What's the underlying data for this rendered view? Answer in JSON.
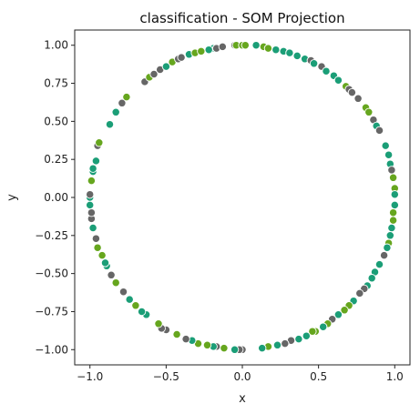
{
  "chart_data": {
    "type": "scatter",
    "title": "classification - SOM Projection",
    "xlabel": "x",
    "ylabel": "y",
    "xlim": [
      -1.1,
      1.1
    ],
    "ylim": [
      -1.1,
      1.1
    ],
    "xticks": [
      -1.0,
      -0.5,
      0.0,
      0.5,
      1.0
    ],
    "xtick_labels": [
      "−1.0",
      "−0.5",
      "0.0",
      "0.5",
      "1.0"
    ],
    "yticks": [
      -1.0,
      -0.75,
      -0.5,
      -0.25,
      0.0,
      0.25,
      0.5,
      0.75,
      1.0
    ],
    "ytick_labels": [
      "−1.00",
      "−0.75",
      "−0.50",
      "−0.25",
      "0.00",
      "0.25",
      "0.50",
      "0.75",
      "1.00"
    ],
    "grid": false,
    "colors": {
      "green": "#1b9e77",
      "lime": "#66a61e",
      "gray": "#666666",
      "edge": "#ffffff"
    },
    "points": [
      {
        "x": -0.19,
        "y": 0.98,
        "c": "green"
      },
      {
        "x": -0.17,
        "y": 0.98,
        "c": "gray"
      },
      {
        "x": -0.13,
        "y": 0.99,
        "c": "gray"
      },
      {
        "x": -0.05,
        "y": 1.0,
        "c": "gray"
      },
      {
        "x": -0.04,
        "y": 1.0,
        "c": "lime"
      },
      {
        "x": 0.0,
        "y": 1.0,
        "c": "lime"
      },
      {
        "x": 0.02,
        "y": 1.0,
        "c": "lime"
      },
      {
        "x": 0.09,
        "y": 1.0,
        "c": "green"
      },
      {
        "x": 0.14,
        "y": 0.99,
        "c": "lime"
      },
      {
        "x": 0.17,
        "y": 0.98,
        "c": "lime"
      },
      {
        "x": 0.22,
        "y": 0.97,
        "c": "green"
      },
      {
        "x": 0.27,
        "y": 0.96,
        "c": "green"
      },
      {
        "x": 0.31,
        "y": 0.95,
        "c": "green"
      },
      {
        "x": 0.36,
        "y": 0.93,
        "c": "green"
      },
      {
        "x": 0.41,
        "y": 0.91,
        "c": "green"
      },
      {
        "x": 0.45,
        "y": 0.9,
        "c": "gray"
      },
      {
        "x": 0.47,
        "y": 0.88,
        "c": "green"
      },
      {
        "x": 0.52,
        "y": 0.86,
        "c": "gray"
      },
      {
        "x": 0.55,
        "y": 0.83,
        "c": "green"
      },
      {
        "x": 0.6,
        "y": 0.8,
        "c": "green"
      },
      {
        "x": 0.63,
        "y": 0.77,
        "c": "green"
      },
      {
        "x": 0.68,
        "y": 0.73,
        "c": "lime"
      },
      {
        "x": 0.7,
        "y": 0.71,
        "c": "gray"
      },
      {
        "x": 0.72,
        "y": 0.69,
        "c": "gray"
      },
      {
        "x": 0.76,
        "y": 0.65,
        "c": "gray"
      },
      {
        "x": 0.81,
        "y": 0.59,
        "c": "lime"
      },
      {
        "x": 0.83,
        "y": 0.56,
        "c": "lime"
      },
      {
        "x": 0.86,
        "y": 0.51,
        "c": "gray"
      },
      {
        "x": 0.88,
        "y": 0.47,
        "c": "green"
      },
      {
        "x": 0.9,
        "y": 0.44,
        "c": "gray"
      },
      {
        "x": 0.94,
        "y": 0.34,
        "c": "green"
      },
      {
        "x": 0.96,
        "y": 0.28,
        "c": "green"
      },
      {
        "x": 0.97,
        "y": 0.22,
        "c": "green"
      },
      {
        "x": 0.98,
        "y": 0.18,
        "c": "gray"
      },
      {
        "x": 0.99,
        "y": 0.13,
        "c": "lime"
      },
      {
        "x": 1.0,
        "y": 0.06,
        "c": "lime"
      },
      {
        "x": 1.0,
        "y": 0.02,
        "c": "green"
      },
      {
        "x": 1.0,
        "y": -0.05,
        "c": "green"
      },
      {
        "x": 0.99,
        "y": -0.1,
        "c": "lime"
      },
      {
        "x": 0.99,
        "y": -0.15,
        "c": "lime"
      },
      {
        "x": 0.98,
        "y": -0.2,
        "c": "green"
      },
      {
        "x": 0.97,
        "y": -0.25,
        "c": "green"
      },
      {
        "x": 0.96,
        "y": -0.3,
        "c": "lime"
      },
      {
        "x": 0.95,
        "y": -0.33,
        "c": "green"
      },
      {
        "x": 0.93,
        "y": -0.38,
        "c": "gray"
      },
      {
        "x": 0.9,
        "y": -0.44,
        "c": "green"
      },
      {
        "x": 0.87,
        "y": -0.49,
        "c": "green"
      },
      {
        "x": 0.85,
        "y": -0.53,
        "c": "green"
      },
      {
        "x": 0.82,
        "y": -0.58,
        "c": "green"
      },
      {
        "x": 0.8,
        "y": -0.6,
        "c": "gray"
      },
      {
        "x": 0.77,
        "y": -0.63,
        "c": "gray"
      },
      {
        "x": 0.73,
        "y": -0.68,
        "c": "green"
      },
      {
        "x": 0.7,
        "y": -0.71,
        "c": "lime"
      },
      {
        "x": 0.67,
        "y": -0.74,
        "c": "lime"
      },
      {
        "x": 0.63,
        "y": -0.77,
        "c": "green"
      },
      {
        "x": 0.59,
        "y": -0.8,
        "c": "gray"
      },
      {
        "x": 0.56,
        "y": -0.83,
        "c": "lime"
      },
      {
        "x": 0.53,
        "y": -0.85,
        "c": "green"
      },
      {
        "x": 0.48,
        "y": -0.88,
        "c": "lime"
      },
      {
        "x": 0.46,
        "y": -0.88,
        "c": "lime"
      },
      {
        "x": 0.42,
        "y": -0.91,
        "c": "green"
      },
      {
        "x": 0.37,
        "y": -0.93,
        "c": "green"
      },
      {
        "x": 0.32,
        "y": -0.94,
        "c": "gray"
      },
      {
        "x": 0.28,
        "y": -0.96,
        "c": "gray"
      },
      {
        "x": 0.23,
        "y": -0.97,
        "c": "green"
      },
      {
        "x": 0.17,
        "y": -0.98,
        "c": "lime"
      },
      {
        "x": 0.13,
        "y": -0.99,
        "c": "green"
      },
      {
        "x": 0.0,
        "y": -1.0,
        "c": "gray"
      },
      {
        "x": -0.02,
        "y": -1.0,
        "c": "gray"
      },
      {
        "x": -0.05,
        "y": -1.0,
        "c": "green"
      },
      {
        "x": -0.12,
        "y": -0.99,
        "c": "lime"
      },
      {
        "x": -0.17,
        "y": -0.98,
        "c": "gray"
      },
      {
        "x": -0.19,
        "y": -0.98,
        "c": "green"
      },
      {
        "x": -0.23,
        "y": -0.97,
        "c": "lime"
      },
      {
        "x": -0.29,
        "y": -0.96,
        "c": "lime"
      },
      {
        "x": -0.33,
        "y": -0.94,
        "c": "green"
      },
      {
        "x": -0.37,
        "y": -0.93,
        "c": "gray"
      },
      {
        "x": -0.43,
        "y": -0.9,
        "c": "lime"
      },
      {
        "x": -0.5,
        "y": -0.87,
        "c": "gray"
      },
      {
        "x": -0.53,
        "y": -0.86,
        "c": "gray"
      },
      {
        "x": -0.55,
        "y": -0.83,
        "c": "lime"
      },
      {
        "x": -0.63,
        "y": -0.77,
        "c": "green"
      },
      {
        "x": -0.66,
        "y": -0.75,
        "c": "green"
      },
      {
        "x": -0.7,
        "y": -0.71,
        "c": "lime"
      },
      {
        "x": -0.74,
        "y": -0.67,
        "c": "green"
      },
      {
        "x": -0.78,
        "y": -0.62,
        "c": "gray"
      },
      {
        "x": -0.83,
        "y": -0.56,
        "c": "lime"
      },
      {
        "x": -0.86,
        "y": -0.51,
        "c": "gray"
      },
      {
        "x": -0.89,
        "y": -0.45,
        "c": "green"
      },
      {
        "x": -0.9,
        "y": -0.43,
        "c": "green"
      },
      {
        "x": -0.92,
        "y": -0.38,
        "c": "lime"
      },
      {
        "x": -0.95,
        "y": -0.33,
        "c": "lime"
      },
      {
        "x": -0.96,
        "y": -0.27,
        "c": "gray"
      },
      {
        "x": -0.98,
        "y": -0.2,
        "c": "green"
      },
      {
        "x": -0.99,
        "y": -0.14,
        "c": "gray"
      },
      {
        "x": -0.99,
        "y": -0.1,
        "c": "gray"
      },
      {
        "x": -1.0,
        "y": -0.05,
        "c": "green"
      },
      {
        "x": -1.0,
        "y": 0.0,
        "c": "green"
      },
      {
        "x": -1.0,
        "y": 0.02,
        "c": "gray"
      },
      {
        "x": -0.99,
        "y": 0.11,
        "c": "lime"
      },
      {
        "x": -0.98,
        "y": 0.17,
        "c": "green"
      },
      {
        "x": -0.98,
        "y": 0.19,
        "c": "green"
      },
      {
        "x": -0.96,
        "y": 0.24,
        "c": "green"
      },
      {
        "x": -0.95,
        "y": 0.34,
        "c": "gray"
      },
      {
        "x": -0.94,
        "y": 0.36,
        "c": "lime"
      },
      {
        "x": -0.87,
        "y": 0.48,
        "c": "green"
      },
      {
        "x": -0.83,
        "y": 0.56,
        "c": "green"
      },
      {
        "x": -0.79,
        "y": 0.62,
        "c": "gray"
      },
      {
        "x": -0.76,
        "y": 0.66,
        "c": "lime"
      },
      {
        "x": -0.64,
        "y": 0.76,
        "c": "gray"
      },
      {
        "x": -0.61,
        "y": 0.79,
        "c": "lime"
      },
      {
        "x": -0.58,
        "y": 0.81,
        "c": "gray"
      },
      {
        "x": -0.54,
        "y": 0.84,
        "c": "gray"
      },
      {
        "x": -0.5,
        "y": 0.86,
        "c": "green"
      },
      {
        "x": -0.46,
        "y": 0.89,
        "c": "lime"
      },
      {
        "x": -0.42,
        "y": 0.91,
        "c": "gray"
      },
      {
        "x": -0.4,
        "y": 0.92,
        "c": "gray"
      },
      {
        "x": -0.35,
        "y": 0.94,
        "c": "green"
      },
      {
        "x": -0.31,
        "y": 0.95,
        "c": "lime"
      },
      {
        "x": -0.27,
        "y": 0.96,
        "c": "lime"
      },
      {
        "x": -0.22,
        "y": 0.97,
        "c": "green"
      }
    ]
  }
}
